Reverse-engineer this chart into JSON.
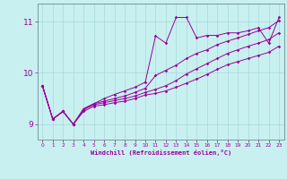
{
  "title": "",
  "xlabel": "Windchill (Refroidissement éolien,°C)",
  "ylabel": "",
  "bg_color": "#c8f0f0",
  "line_color": "#990099",
  "xlim": [
    -0.5,
    23.5
  ],
  "ylim": [
    8.7,
    11.35
  ],
  "yticks": [
    9,
    10,
    11
  ],
  "xticks": [
    0,
    1,
    2,
    3,
    4,
    5,
    6,
    7,
    8,
    9,
    10,
    11,
    12,
    13,
    14,
    15,
    16,
    17,
    18,
    19,
    20,
    21,
    22,
    23
  ],
  "series1_x": [
    0,
    1,
    2,
    3,
    4,
    5,
    6,
    7,
    8,
    9,
    10,
    11,
    12,
    13,
    14,
    15,
    16,
    17,
    18,
    19,
    20,
    21,
    22,
    23
  ],
  "series1_y": [
    9.75,
    9.1,
    9.25,
    9.0,
    9.3,
    9.4,
    9.5,
    9.58,
    9.65,
    9.72,
    9.82,
    10.72,
    10.58,
    11.08,
    11.08,
    10.68,
    10.73,
    10.73,
    10.78,
    10.78,
    10.82,
    10.88,
    10.58,
    11.08
  ],
  "series2_x": [
    0,
    1,
    2,
    3,
    4,
    5,
    6,
    7,
    8,
    9,
    10,
    11,
    12,
    13,
    14,
    15,
    16,
    17,
    18,
    19,
    20,
    21,
    22,
    23
  ],
  "series2_y": [
    9.75,
    9.1,
    9.25,
    9.0,
    9.3,
    9.4,
    9.45,
    9.5,
    9.55,
    9.62,
    9.7,
    9.95,
    10.05,
    10.15,
    10.28,
    10.38,
    10.45,
    10.55,
    10.62,
    10.68,
    10.75,
    10.82,
    10.88,
    11.02
  ],
  "series3_x": [
    0,
    1,
    2,
    3,
    4,
    5,
    6,
    7,
    8,
    9,
    10,
    11,
    12,
    13,
    14,
    15,
    16,
    17,
    18,
    19,
    20,
    21,
    22,
    23
  ],
  "series3_y": [
    9.75,
    9.1,
    9.25,
    9.0,
    9.28,
    9.38,
    9.42,
    9.46,
    9.5,
    9.55,
    9.62,
    9.68,
    9.75,
    9.85,
    9.98,
    10.08,
    10.18,
    10.28,
    10.38,
    10.45,
    10.52,
    10.58,
    10.65,
    10.78
  ],
  "series4_x": [
    0,
    1,
    2,
    3,
    4,
    5,
    6,
    7,
    8,
    9,
    10,
    11,
    12,
    13,
    14,
    15,
    16,
    17,
    18,
    19,
    20,
    21,
    22,
    23
  ],
  "series4_y": [
    9.75,
    9.1,
    9.25,
    9.0,
    9.25,
    9.35,
    9.38,
    9.42,
    9.45,
    9.5,
    9.57,
    9.6,
    9.65,
    9.72,
    9.8,
    9.88,
    9.97,
    10.07,
    10.16,
    10.22,
    10.28,
    10.34,
    10.4,
    10.52
  ]
}
